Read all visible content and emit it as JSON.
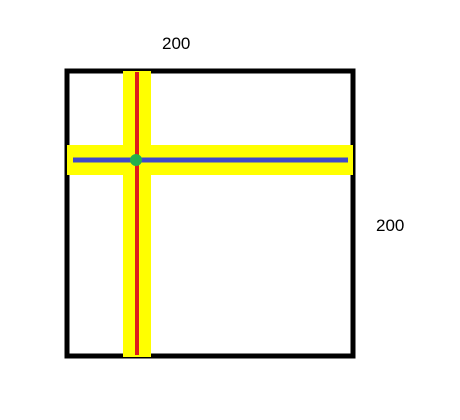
{
  "dimensions": {
    "width_label": "200",
    "height_label": "200"
  },
  "colors": {
    "background": "#ffffff",
    "square_border": "#000000",
    "highlight_band": "#ffff00",
    "vertical_line": "#dd1c1c",
    "horizontal_line": "#3f48cc",
    "intersection_point": "#22b14c"
  }
}
